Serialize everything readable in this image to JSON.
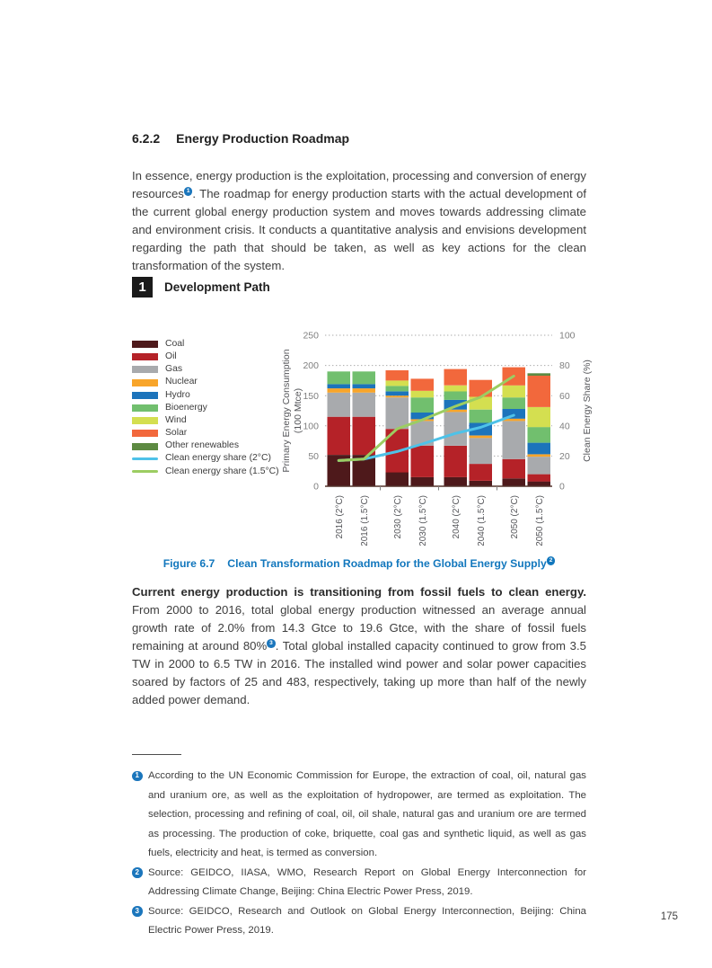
{
  "heading": {
    "number": "6.2.2",
    "title": "Energy Production Roadmap"
  },
  "intro": {
    "before_ref": "In essence, energy production is the exploitation, processing and conversion of energy resources",
    "ref_marker": "1",
    "after_ref": ". The roadmap for energy production starts with the actual development of the current global energy production system and moves towards addressing climate and environment crisis. It conducts a quantitative analysis and envisions development regarding the path that should be taken, as well as key actions for the clean transformation of the system."
  },
  "development_path": {
    "badge": "1",
    "title": "Development Path"
  },
  "figure_caption": {
    "label": "Figure 6.7",
    "title": "Clean Transformation Roadmap for the Global Energy Supply",
    "ref_marker": "2"
  },
  "body": {
    "lead_bold": "Current energy production is transitioning from fossil fuels to clean energy.",
    "before_ref": " From 2000 to 2016, total global energy production witnessed an average annual growth rate of 2.0% from 14.3 Gtce to 19.6 Gtce, with the share of fossil fuels remaining at around 80%",
    "ref_marker": "3",
    "after_ref": ". Total global installed capacity continued to grow from 3.5 TW in 2000 to 6.5 TW in 2016. The installed wind power and solar power capacities soared by factors of 25 and 483, respectively, taking up more than half of the newly added power demand."
  },
  "footnotes": [
    {
      "marker": "1",
      "text": "According to the UN Economic Commission for Europe, the extraction of coal, oil, natural gas and uranium ore, as well as the exploitation of hydropower, are termed as exploitation. The selection, processing and refining of coal, oil, oil shale, natural gas and uranium ore are termed as processing. The production of coke, briquette, coal gas and synthetic liquid, as well as gas fuels, electricity and heat, is termed as conversion."
    },
    {
      "marker": "2",
      "text": "Source: GEIDCO, IIASA, WMO, Research Report on Global Energy Interconnection for Addressing Climate Change, Beijing: China Electric Power Press, 2019."
    },
    {
      "marker": "3",
      "text": "Source: GEIDCO, Research and Outlook on Global Energy Interconnection, Beijing: China Electric Power Press, 2019."
    }
  ],
  "page_number": "175",
  "chart_data": {
    "type": "bar",
    "stacked": true,
    "grid": "dotted-horizontal",
    "legend_position": "left",
    "categories": [
      "2016 (2°C)",
      "2016 (1.5°C)",
      "2030 (2°C)",
      "2030 (1.5°C)",
      "2040 (2°C)",
      "2040 (1.5°C)",
      "2050 (2°C)",
      "2050 (1.5°C)"
    ],
    "series": [
      {
        "name": "Coal",
        "color": "#4e191b",
        "values": [
          52,
          52,
          23,
          15,
          15,
          9,
          13,
          8
        ]
      },
      {
        "name": "Oil",
        "color": "#b52228",
        "values": [
          63,
          63,
          72,
          52,
          52,
          28,
          32,
          12
        ]
      },
      {
        "name": "Gas",
        "color": "#a8aaad",
        "values": [
          40,
          40,
          52,
          41,
          56,
          43,
          63,
          29
        ]
      },
      {
        "name": "Nuclear",
        "color": "#f8a52a",
        "values": [
          7,
          7,
          3,
          3,
          4,
          4,
          4,
          4
        ]
      },
      {
        "name": "Hydro",
        "color": "#1c74bb",
        "values": [
          7,
          7,
          7,
          11,
          16,
          21,
          16,
          19
        ]
      },
      {
        "name": "Bioenergy",
        "color": "#71bf6e",
        "values": [
          21,
          21,
          9,
          25,
          14,
          22,
          19,
          26
        ]
      },
      {
        "name": "Wind",
        "color": "#d4df50",
        "values": [
          0,
          0,
          9,
          11,
          10,
          21,
          20,
          33
        ]
      },
      {
        "name": "Solar",
        "color": "#f2683c",
        "values": [
          0,
          0,
          17,
          20,
          27,
          28,
          30,
          52
        ]
      },
      {
        "name": "Other renewables",
        "color": "#5d8a42",
        "values": [
          0,
          0,
          0,
          0,
          0,
          0,
          0,
          4
        ]
      }
    ],
    "lines": [
      {
        "name": "Clean energy share (2°C)",
        "color": "#4ec2e8",
        "axis": "right",
        "values": [
          17,
          18,
          23,
          28,
          35,
          39,
          47
        ]
      },
      {
        "name": "Clean energy share (1.5°C)",
        "color": "#9ccd62",
        "axis": "right",
        "values": [
          17,
          18,
          38,
          44,
          53,
          59,
          73
        ]
      }
    ],
    "left_axis": {
      "label": "Primary Energy Consumption (100 Mtce)",
      "label_lines": [
        "Primary Energy Consumption",
        "(100 Mtce)"
      ],
      "ticks": [
        0,
        50,
        100,
        150,
        200,
        250
      ],
      "max": 250
    },
    "right_axis": {
      "label": "Clean Energy Share (%)",
      "label_lines": [
        "Clean Energy Share (%)"
      ],
      "ticks": [
        0,
        20,
        40,
        60,
        80,
        100
      ],
      "max": 100
    }
  }
}
